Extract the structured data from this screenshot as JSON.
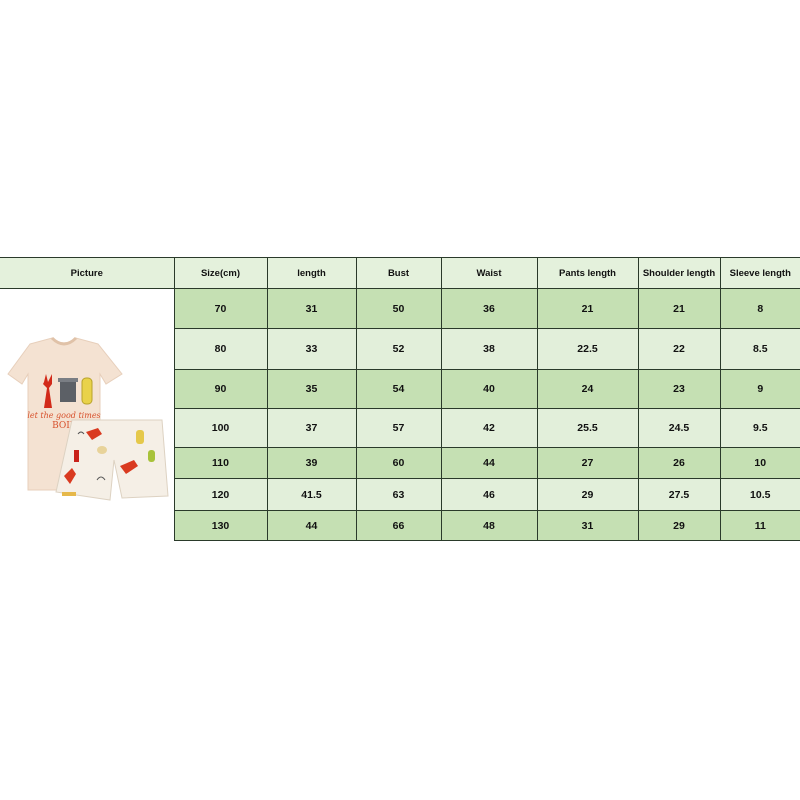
{
  "headers": [
    "Picture",
    "Size(cm)",
    "length",
    "Bust",
    "Waist",
    "Pants length",
    "Shoulder length",
    "Sleeve length"
  ],
  "rows": [
    [
      "70",
      "31",
      "50",
      "36",
      "21",
      "21",
      "8"
    ],
    [
      "80",
      "33",
      "52",
      "38",
      "22.5",
      "22",
      "8.5"
    ],
    [
      "90",
      "35",
      "54",
      "40",
      "24",
      "23",
      "9"
    ],
    [
      "100",
      "37",
      "57",
      "42",
      "25.5",
      "24.5",
      "9.5"
    ],
    [
      "110",
      "39",
      "60",
      "44",
      "27",
      "26",
      "10"
    ],
    [
      "120",
      "41.5",
      "63",
      "46",
      "29",
      "27.5",
      "10.5"
    ],
    [
      "130",
      "44",
      "66",
      "48",
      "31",
      "29",
      "11"
    ]
  ],
  "product_image": {
    "shirt_print": "let the good times BOIL"
  },
  "colors": {
    "header_bg": "#e4f1dc",
    "row_dark": "#c5e0b3",
    "row_light": "#e2efda"
  }
}
